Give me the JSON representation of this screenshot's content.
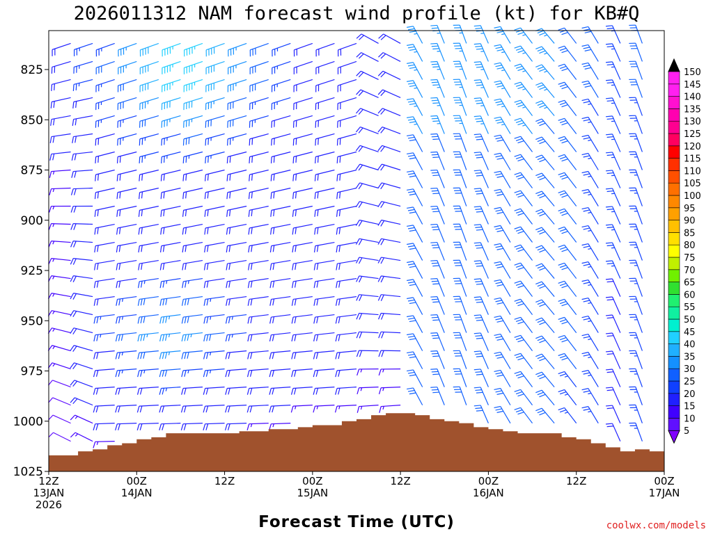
{
  "chart_data": {
    "type": "wind-barb-time-height",
    "title": "2026011312 NAM forecast wind profile (kt) for KB#Q",
    "xlabel": "Forecast Time (UTC)",
    "ylabel": "",
    "y_reversed": true,
    "ylim": [
      1025,
      806
    ],
    "y_ticks": [
      825,
      850,
      875,
      900,
      925,
      950,
      975,
      1000,
      1025
    ],
    "xlim_hours": [
      0,
      84
    ],
    "x_ticks": [
      {
        "hour": 0,
        "lines": [
          "12Z",
          "13JAN",
          "2026"
        ]
      },
      {
        "hour": 12,
        "lines": [
          "00Z",
          "14JAN"
        ]
      },
      {
        "hour": 24,
        "lines": [
          "12Z"
        ]
      },
      {
        "hour": 36,
        "lines": [
          "00Z",
          "15JAN"
        ]
      },
      {
        "hour": 48,
        "lines": [
          "12Z"
        ]
      },
      {
        "hour": 60,
        "lines": [
          "00Z",
          "16JAN"
        ]
      },
      {
        "hour": 72,
        "lines": [
          "12Z"
        ]
      },
      {
        "hour": 84,
        "lines": [
          "00Z",
          "17JAN"
        ]
      }
    ],
    "colorbar": {
      "units": "kt",
      "labels": [
        5,
        10,
        15,
        20,
        25,
        30,
        35,
        40,
        45,
        50,
        55,
        60,
        65,
        70,
        75,
        80,
        85,
        90,
        95,
        100,
        105,
        110,
        115,
        120,
        125,
        130,
        135,
        140,
        145,
        150
      ],
      "colors": [
        "#8000ff",
        "#6010ff",
        "#4000ff",
        "#2020ff",
        "#1040ff",
        "#1060ff",
        "#1490ff",
        "#20b0ff",
        "#20d0ff",
        "#00f0d0",
        "#10f0a0",
        "#20f070",
        "#30e030",
        "#70f000",
        "#c0f000",
        "#ffff00",
        "#ffe000",
        "#ffc000",
        "#ffa000",
        "#ff8800",
        "#ff7000",
        "#ff5000",
        "#ff3000",
        "#ff0000",
        "#ff0060",
        "#ff0090",
        "#ff00b0",
        "#ff10d0",
        "#ff20f0",
        "#000000"
      ]
    },
    "surface_pressure": {
      "hours": [
        0,
        2,
        4,
        6,
        8,
        10,
        12,
        14,
        16,
        18,
        20,
        22,
        24,
        26,
        28,
        30,
        32,
        34,
        36,
        38,
        40,
        42,
        44,
        46,
        48,
        50,
        52,
        54,
        56,
        58,
        60,
        62,
        64,
        66,
        68,
        70,
        72,
        74,
        76,
        78,
        80,
        82,
        84
      ],
      "pressure": [
        1017,
        1017,
        1015,
        1014,
        1012,
        1011,
        1009,
        1008,
        1006,
        1006,
        1006,
        1006,
        1006,
        1005,
        1005,
        1004,
        1004,
        1003,
        1002,
        1002,
        1000,
        999,
        997,
        996,
        996,
        997,
        999,
        1000,
        1001,
        1003,
        1004,
        1005,
        1006,
        1006,
        1006,
        1008,
        1009,
        1011,
        1013,
        1015,
        1014,
        1015,
        1015
      ],
      "color": "#a0522d"
    },
    "credit": "coolwx.com/models"
  }
}
